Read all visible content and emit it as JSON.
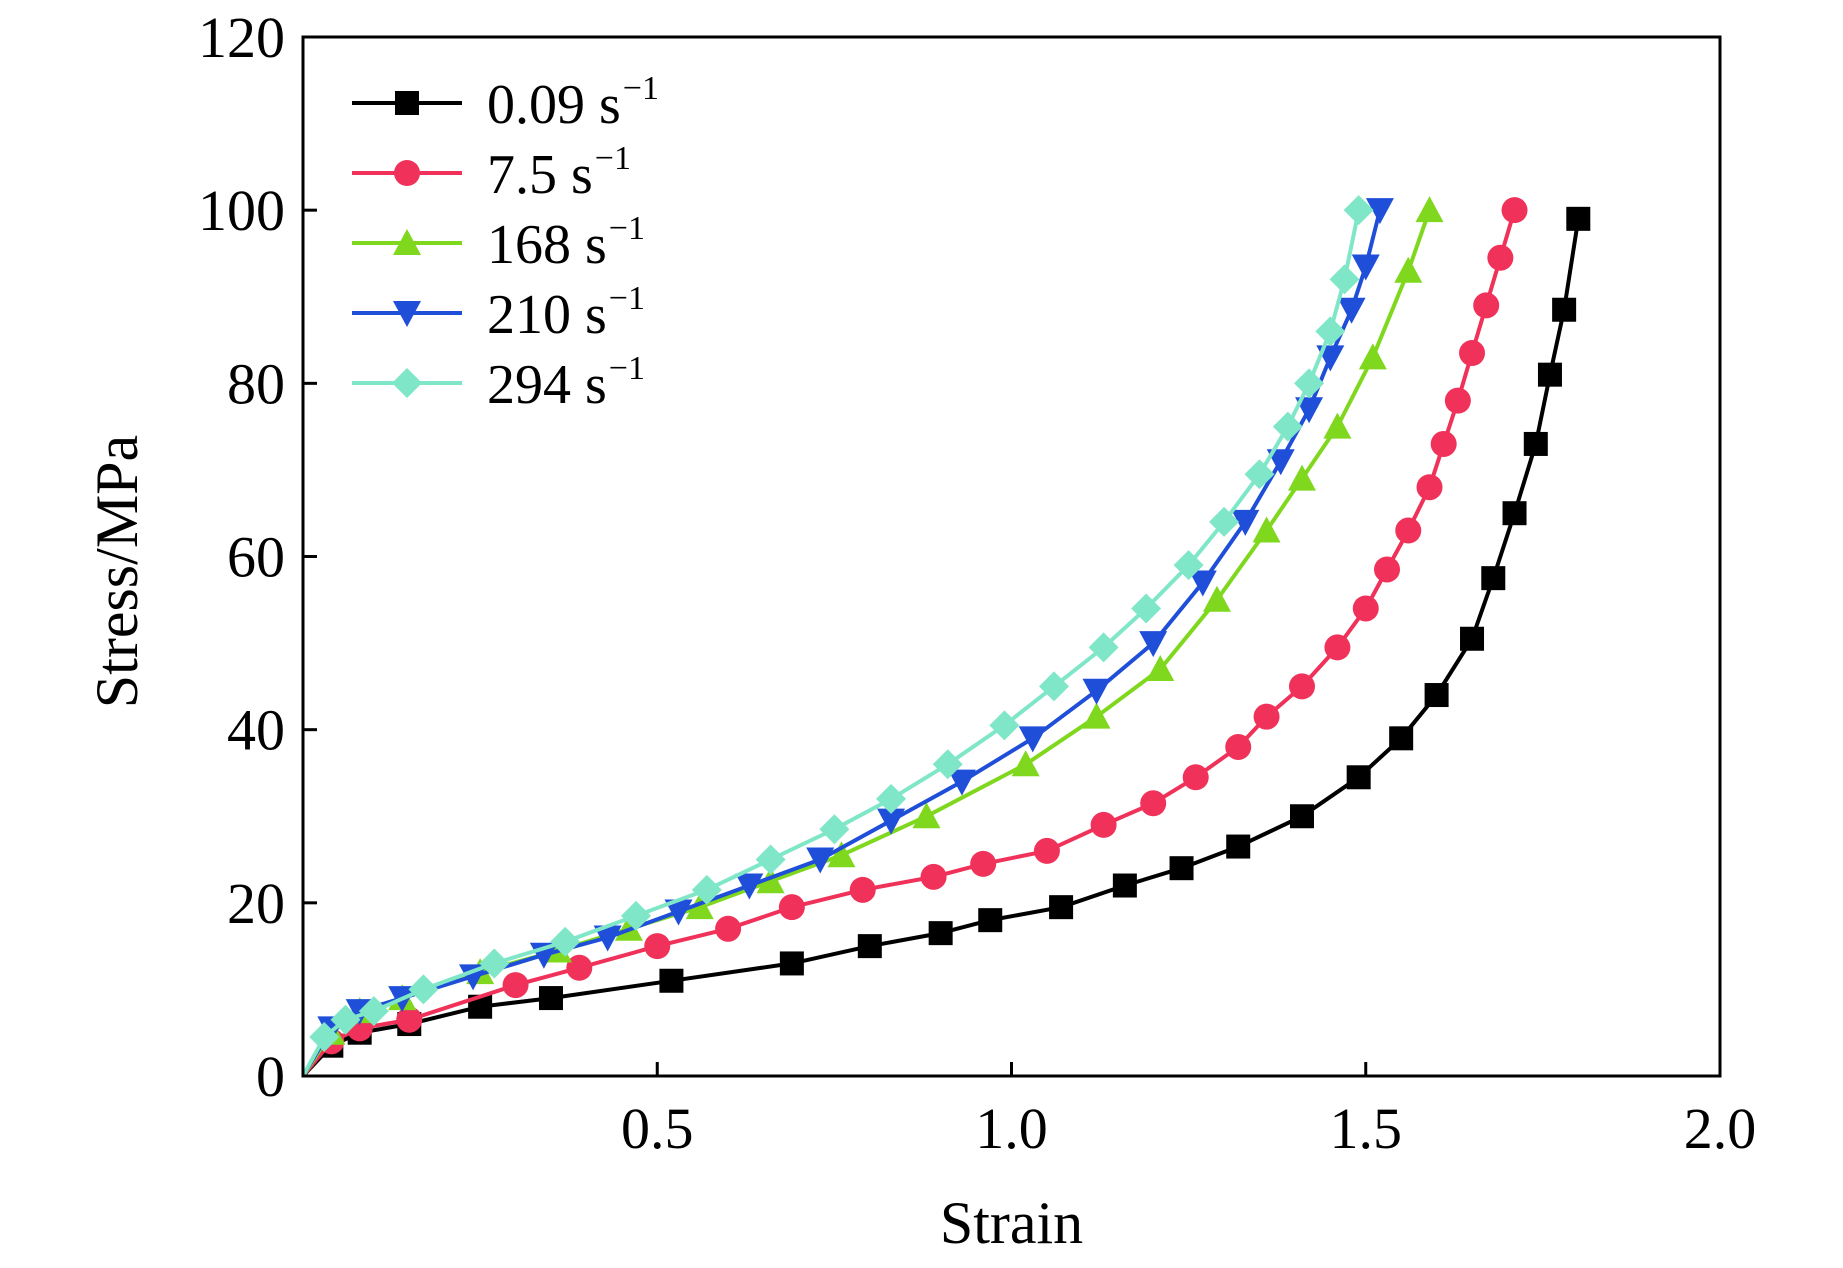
{
  "chart_data": {
    "type": "line",
    "xlabel": "Strain",
    "ylabel": "Stress/MPa",
    "xlim": [
      0,
      2.0
    ],
    "ylim": [
      0,
      120
    ],
    "x_ticks": [
      "0.5",
      "1.0",
      "1.5",
      "2.0"
    ],
    "x_tick_values": [
      0.5,
      1.0,
      1.5,
      2.0
    ],
    "y_ticks": [
      "0",
      "20",
      "40",
      "60",
      "80",
      "100",
      "120"
    ],
    "y_tick_values": [
      0,
      20,
      40,
      60,
      80,
      100,
      120
    ],
    "grid": false,
    "legend_position": "top-left",
    "series": [
      {
        "name": "0.09 s",
        "name_sup": "−1",
        "color": "#000000",
        "marker": "square",
        "x": [
          0,
          0.04,
          0.08,
          0.15,
          0.25,
          0.35,
          0.52,
          0.69,
          0.8,
          0.9,
          0.97,
          1.07,
          1.16,
          1.24,
          1.32,
          1.41,
          1.49,
          1.55,
          1.6,
          1.65,
          1.68,
          1.71,
          1.74,
          1.76,
          1.78,
          1.8
        ],
        "y": [
          0,
          3.5,
          5,
          6,
          8,
          9,
          11,
          13,
          15,
          16.5,
          18,
          19.5,
          22,
          24,
          26.5,
          30,
          34.5,
          39,
          44,
          50.5,
          57.5,
          65,
          73,
          81,
          88.5,
          99
        ]
      },
      {
        "name": "7.5 s",
        "name_sup": "−1",
        "color": "#f0325a",
        "marker": "circle",
        "x": [
          0,
          0.04,
          0.08,
          0.15,
          0.3,
          0.39,
          0.5,
          0.6,
          0.69,
          0.79,
          0.89,
          0.96,
          1.05,
          1.13,
          1.2,
          1.26,
          1.32,
          1.36,
          1.41,
          1.46,
          1.5,
          1.53,
          1.56,
          1.59,
          1.61,
          1.63,
          1.65,
          1.67,
          1.69,
          1.71
        ],
        "y": [
          0,
          4,
          5.5,
          6.5,
          10.5,
          12.5,
          15,
          17,
          19.5,
          21.5,
          23,
          24.5,
          26,
          29,
          31.5,
          34.5,
          38,
          41.5,
          45,
          49.5,
          54,
          58.5,
          63,
          68,
          73,
          78,
          83.5,
          89,
          94.5,
          100
        ]
      },
      {
        "name": "168 s",
        "name_sup": "−1",
        "color": "#7fd81e",
        "marker": "triangle-up",
        "x": [
          0,
          0.04,
          0.08,
          0.14,
          0.25,
          0.36,
          0.46,
          0.56,
          0.66,
          0.76,
          0.88,
          1.02,
          1.12,
          1.21,
          1.29,
          1.36,
          1.41,
          1.46,
          1.51,
          1.56,
          1.59
        ],
        "y": [
          0,
          5,
          7.5,
          9,
          12,
          14.5,
          17,
          19.5,
          22.5,
          25.5,
          30,
          36,
          41.5,
          47,
          55,
          63,
          69,
          75,
          83,
          93,
          100
        ]
      },
      {
        "name": "210 s",
        "name_sup": "−1",
        "color": "#1f4fd8",
        "marker": "triangle-down",
        "x": [
          0,
          0.04,
          0.08,
          0.14,
          0.24,
          0.34,
          0.43,
          0.53,
          0.63,
          0.73,
          0.83,
          0.93,
          1.03,
          1.12,
          1.2,
          1.27,
          1.33,
          1.38,
          1.42,
          1.45,
          1.48,
          1.5,
          1.52
        ],
        "y": [
          0,
          5.5,
          7.5,
          9,
          11.5,
          14,
          16,
          19,
          22,
          25,
          29.5,
          34,
          39,
          44.5,
          50,
          57,
          64,
          71,
          77,
          83,
          88.5,
          93.5,
          100
        ]
      },
      {
        "name": "294 s",
        "name_sup": "−1",
        "color": "#7fe7c8",
        "marker": "diamond",
        "x": [
          0,
          0.03,
          0.06,
          0.1,
          0.17,
          0.27,
          0.37,
          0.47,
          0.57,
          0.66,
          0.75,
          0.83,
          0.91,
          0.99,
          1.06,
          1.13,
          1.19,
          1.25,
          1.3,
          1.35,
          1.39,
          1.42,
          1.45,
          1.47,
          1.49
        ],
        "y": [
          0,
          4.5,
          6.5,
          7.5,
          10,
          13,
          15.5,
          18.5,
          21.5,
          25,
          28.5,
          32,
          36,
          40.5,
          45,
          49.5,
          54,
          59,
          64,
          69.5,
          75,
          80,
          86,
          92,
          100
        ]
      }
    ]
  }
}
